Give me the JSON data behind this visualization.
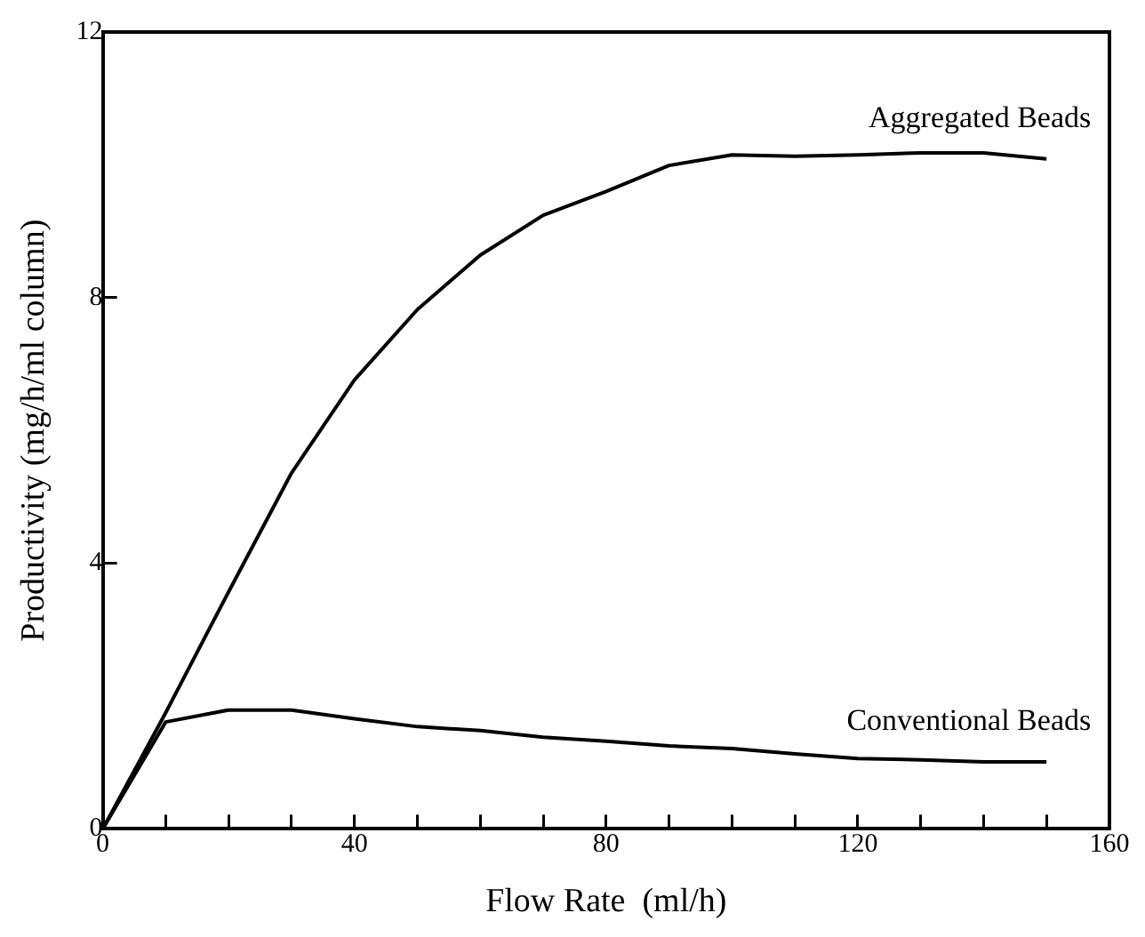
{
  "chart_data": {
    "type": "line",
    "xlabel": "Flow Rate  (ml/h)",
    "ylabel": "Productivity (mg/h/ml column)",
    "x": [
      0,
      10,
      20,
      30,
      40,
      50,
      60,
      70,
      80,
      90,
      100,
      110,
      120,
      130,
      140,
      150
    ],
    "series": [
      {
        "name": "Aggregated Beads",
        "color": "#000000",
        "values": [
          0,
          1.75,
          3.57,
          5.36,
          6.76,
          7.82,
          8.64,
          9.24,
          9.6,
          9.99,
          10.15,
          10.13,
          10.15,
          10.18,
          10.18,
          10.09
        ]
      },
      {
        "name": "Conventional Beads",
        "color": "#000000",
        "values": [
          0,
          1.61,
          1.79,
          1.79,
          1.66,
          1.54,
          1.48,
          1.38,
          1.32,
          1.25,
          1.21,
          1.13,
          1.06,
          1.04,
          1.01,
          1.01
        ]
      }
    ],
    "xlim": [
      0,
      160
    ],
    "xticks": [
      0,
      {
        "value": 10,
        "label": null
      },
      {
        "value": 20,
        "label": null
      },
      {
        "value": 30,
        "label": null
      },
      40,
      {
        "value": 50,
        "label": null
      },
      {
        "value": 60,
        "label": null
      },
      {
        "value": 70,
        "label": null
      },
      80,
      {
        "value": 90,
        "label": null
      },
      {
        "value": 100,
        "label": null
      },
      {
        "value": 110,
        "label": null
      },
      120,
      {
        "value": 130,
        "label": null
      },
      {
        "value": 140,
        "label": null
      },
      {
        "value": 150,
        "label": null
      },
      160
    ],
    "ylim": [
      0,
      12
    ],
    "yticks": [
      0,
      4,
      8,
      12
    ],
    "grid": false,
    "legend": false,
    "marker": "none",
    "line_style": "solid"
  }
}
